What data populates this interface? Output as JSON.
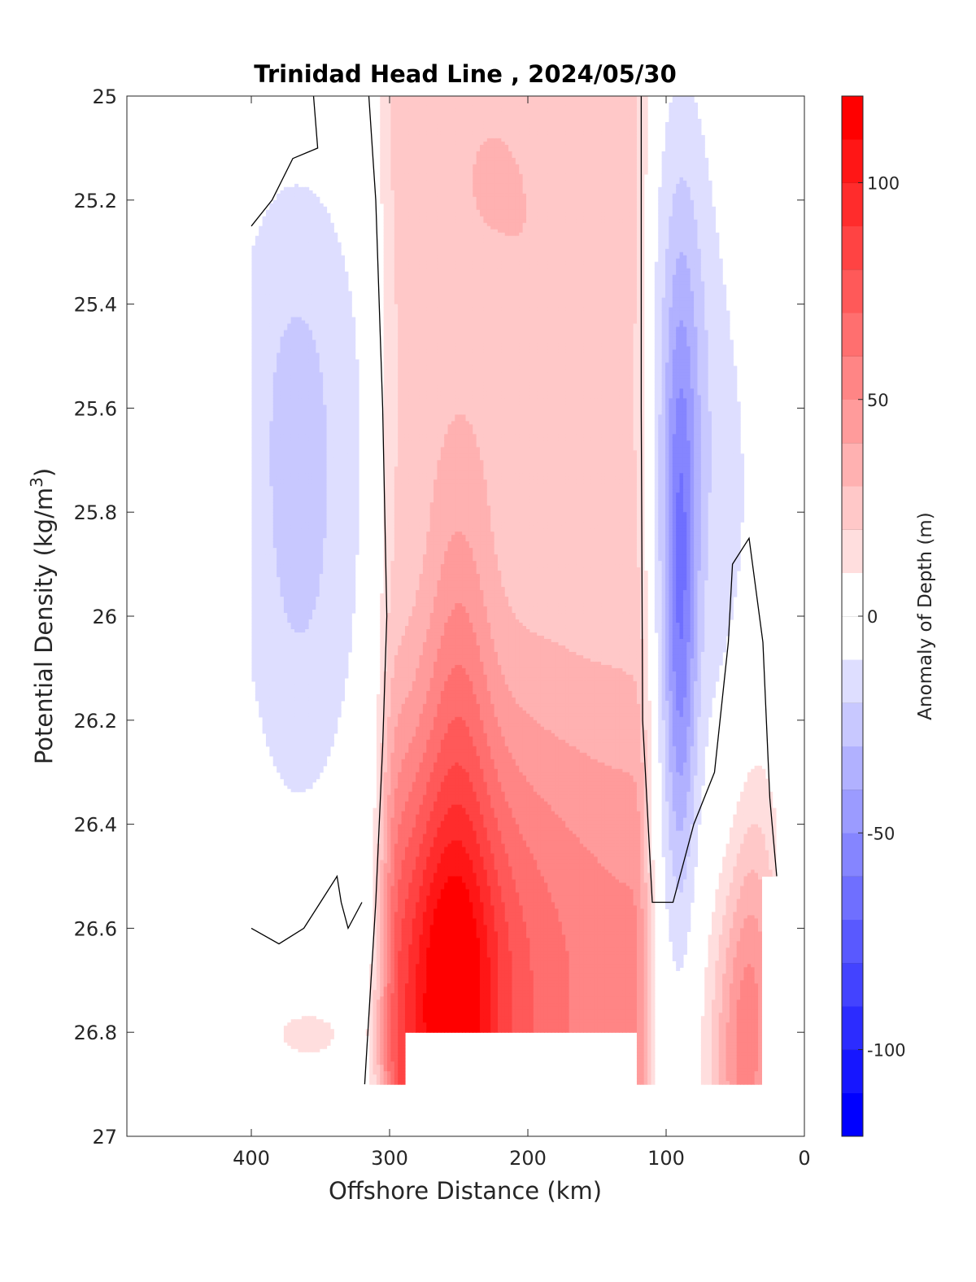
{
  "chart_data": {
    "type": "heatmap",
    "title": "Trinidad Head Line , 2024/05/30",
    "xlabel": "Offshore Distance (km)",
    "ylabel_main": "Potential Density (kg/m",
    "ylabel_sup": "3",
    "ylabel_close": ")",
    "colorbar_label": "Anomaly of Depth (m)",
    "x_ticks": [
      "400",
      "300",
      "200",
      "100",
      "0"
    ],
    "x_tick_values": [
      400,
      300,
      200,
      100,
      0
    ],
    "xlim": [
      490,
      0
    ],
    "x_reversed": true,
    "y_ticks": [
      "25",
      "25.2",
      "25.4",
      "25.6",
      "25.8",
      "26",
      "26.2",
      "26.4",
      "26.6",
      "26.8",
      "27"
    ],
    "y_tick_values": [
      25,
      25.2,
      25.4,
      25.6,
      25.8,
      26,
      26.2,
      26.4,
      26.6,
      26.8,
      27
    ],
    "ylim": [
      25,
      27
    ],
    "y_reversed": true,
    "colorbar_ticks": [
      "100",
      "50",
      "0",
      "-50",
      "-100"
    ],
    "colorbar_tick_values": [
      100,
      50,
      0,
      -50,
      -100
    ],
    "colorbar_range": [
      -120,
      120
    ],
    "contour_step": 10,
    "zero_contour_color": "#000000",
    "colormap": "blue-white-red",
    "colors": {
      "negative": "#0000ff",
      "zero": "#ffffff",
      "positive": "#ff0000"
    },
    "regions": [
      {
        "name": "deep-red-core",
        "offshore_km": [
          240,
          280
        ],
        "density": [
          26.7,
          26.8
        ],
        "anomaly": 115
      },
      {
        "name": "red-core",
        "offshore_km": [
          150,
          290
        ],
        "density": [
          26.55,
          26.8
        ],
        "anomaly": 80
      },
      {
        "name": "pink-band-upper",
        "offshore_km": [
          120,
          300
        ],
        "density": [
          25,
          26.9
        ],
        "anomaly": 20
      },
      {
        "name": "blue-core-nearshore",
        "offshore_km": [
          85,
          100
        ],
        "density": [
          25.8,
          26.3
        ],
        "anomaly": -45
      },
      {
        "name": "blue-offshore",
        "offshore_km": [
          320,
          400
        ],
        "density": [
          25.2,
          26.5
        ],
        "anomaly": -15
      }
    ]
  }
}
